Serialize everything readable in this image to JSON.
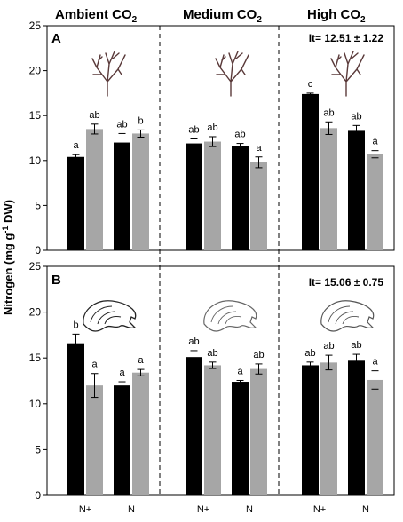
{
  "column_headers": [
    {
      "main": "Ambient CO",
      "sub": "2"
    },
    {
      "main": "Medium CO",
      "sub": "2"
    },
    {
      "main": "High CO",
      "sub": "2"
    }
  ],
  "ylabel": {
    "prefix": "Nitrogen  (mg g",
    "sup": "-1",
    "suffix": " DW)"
  },
  "colors": {
    "black_bar": "#000000",
    "grey_bar": "#a6a6a6",
    "divider": "#000000"
  },
  "icons": {
    "panel_a": "branching-alga-icon",
    "panel_b": "coralline-crust-icon"
  },
  "chart_data": [
    {
      "type": "bar",
      "panel": "A",
      "stat_label": "It= 12.51 ± 1.22",
      "ylim": [
        0,
        25
      ],
      "yticks": [
        "0",
        "5",
        "10",
        "15",
        "20",
        "25"
      ],
      "grid": false,
      "categories": [
        "N+",
        "N",
        "N+",
        "N",
        "N+",
        "N"
      ],
      "series": [
        {
          "values": [
            10.4,
            12.0,
            11.9,
            11.6,
            17.4,
            13.3
          ],
          "errors": [
            0.25,
            1.0,
            0.5,
            0.3,
            0.1,
            0.6
          ],
          "labels": [
            "a",
            "ab",
            "ab",
            "ab",
            "c",
            "ab"
          ]
        },
        {
          "values": [
            13.5,
            13.0,
            12.1,
            9.8,
            13.6,
            10.7
          ],
          "errors": [
            0.55,
            0.4,
            0.55,
            0.6,
            0.7,
            0.4
          ],
          "labels": [
            "ab",
            "b",
            "ab",
            "a",
            "ab",
            "a"
          ]
        }
      ]
    },
    {
      "type": "bar",
      "panel": "B",
      "stat_label": "It= 15.06 ± 0.75",
      "ylim": [
        0,
        25
      ],
      "yticks": [
        "0",
        "5",
        "10",
        "15",
        "20",
        "25"
      ],
      "grid": false,
      "categories": [
        "N+",
        "N",
        "N+",
        "N",
        "N+",
        "N"
      ],
      "series": [
        {
          "values": [
            16.6,
            12.0,
            15.1,
            12.4,
            14.2,
            14.7
          ],
          "errors": [
            1.0,
            0.4,
            0.7,
            0.15,
            0.35,
            0.7
          ],
          "labels": [
            "b",
            "a",
            "ab",
            "a",
            "ab",
            "ab"
          ]
        },
        {
          "values": [
            12.0,
            13.4,
            14.2,
            13.8,
            14.5,
            12.6
          ],
          "errors": [
            1.3,
            0.35,
            0.35,
            0.55,
            0.8,
            1.0
          ],
          "labels": [
            "a",
            "a",
            "ab",
            "ab",
            "ab",
            "a"
          ]
        }
      ]
    }
  ]
}
